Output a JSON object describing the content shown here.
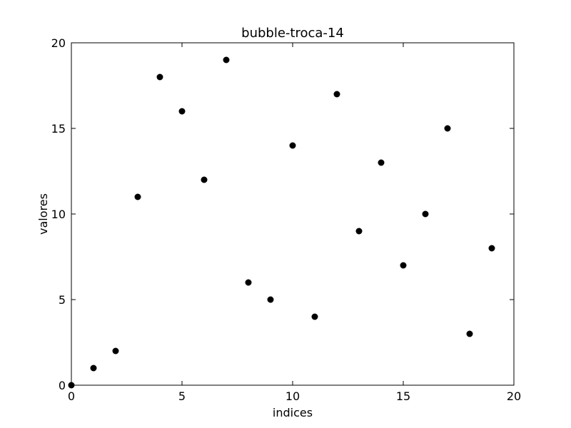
{
  "chart_data": {
    "type": "scatter",
    "title": "bubble-troca-14",
    "xlabel": "indices",
    "ylabel": "valores",
    "xlim": [
      0,
      20
    ],
    "ylim": [
      0,
      20
    ],
    "xticks": [
      0,
      5,
      10,
      15,
      20
    ],
    "yticks": [
      0,
      5,
      10,
      15,
      20
    ],
    "grid": false,
    "marker_color": "#000000",
    "series": [
      {
        "x": [
          0,
          1,
          2,
          3,
          4,
          5,
          6,
          7,
          8,
          9,
          10,
          11,
          12,
          13,
          14,
          15,
          16,
          17,
          18,
          19
        ],
        "y": [
          0,
          1,
          2,
          11,
          18,
          16,
          12,
          19,
          6,
          5,
          14,
          4,
          17,
          9,
          13,
          7,
          10,
          15,
          3,
          8
        ]
      }
    ]
  }
}
